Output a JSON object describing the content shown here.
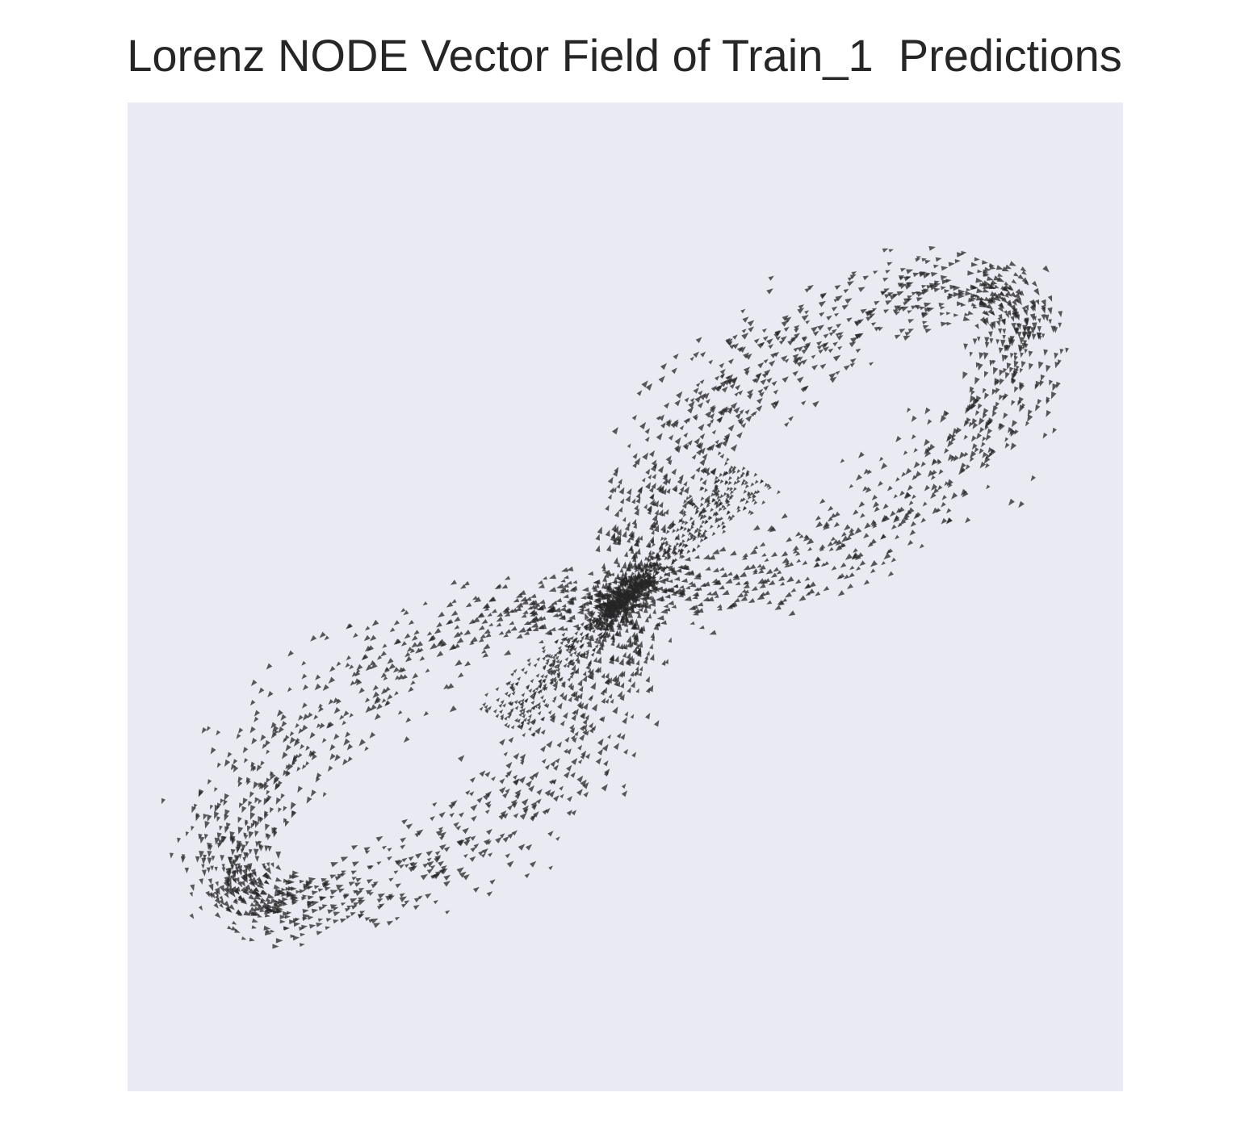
{
  "chart_data": {
    "type": "quiver",
    "title": "Lorenz NODE Vector Field of Train_1  Predictions",
    "xlabel": "",
    "ylabel": "",
    "axis_visible": false,
    "grid": false,
    "legend": "none",
    "xlim": [
      -22,
      22
    ],
    "ylim": [
      -28,
      28
    ],
    "lobes": [
      {
        "center": [
          -8.5,
          -8.5
        ],
        "radii": [
          5,
          12
        ],
        "tilt_deg": 45
      },
      {
        "center": [
          8.5,
          8.5
        ],
        "radii": [
          5,
          12
        ],
        "tilt_deg": 45
      }
    ],
    "band_width": 3.6,
    "sample_count": 3000,
    "arrow_color": "#262626",
    "arrow_opacity": 0.75
  },
  "colors": {
    "plot_background": "#e9eaf2",
    "page_background": "#ffffff",
    "title_color": "#262626",
    "arrow": "#262626"
  }
}
